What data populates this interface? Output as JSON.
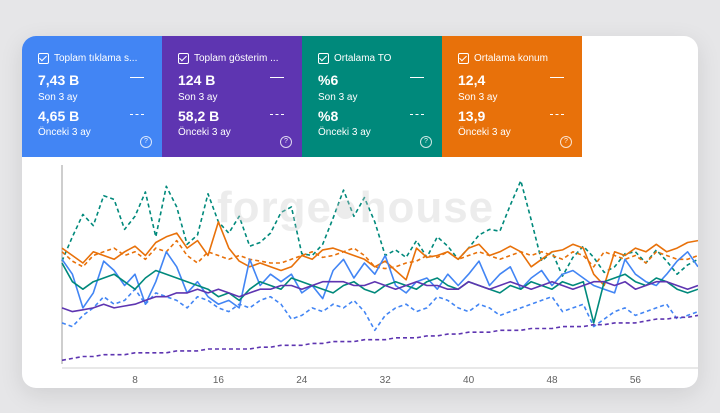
{
  "cards": [
    {
      "title": "Toplam tıklama s...",
      "current_value": "7,43 B",
      "current_label": "Son 3 ay",
      "previous_value": "4,65 B",
      "previous_label": "Önceki 3 ay",
      "color": "#4285f4"
    },
    {
      "title": "Toplam gösterim ...",
      "current_value": "124 B",
      "current_label": "Son 3 ay",
      "previous_value": "58,2 B",
      "previous_label": "Önceki 3 ay",
      "color": "#5e35b1"
    },
    {
      "title": "Ortalama TO",
      "current_value": "%6",
      "current_label": "Son 3 ay",
      "previous_value": "%8",
      "previous_label": "Önceki 3 ay",
      "color": "#00897b"
    },
    {
      "title": "Ortalama konum",
      "current_value": "12,4",
      "current_label": "Son 3 ay",
      "previous_value": "13,9",
      "previous_label": "Önceki 3 ay",
      "color": "#e8710a"
    }
  ],
  "help_icon": "help-circle-icon",
  "watermark": "forge●house",
  "chart_data": {
    "type": "line",
    "x_ticks": [
      "8",
      "16",
      "24",
      "32",
      "40",
      "48",
      "56"
    ],
    "xlim": [
      1,
      62
    ],
    "ylim": [
      0,
      100
    ],
    "grid": false,
    "series": [
      {
        "color": "#00897b",
        "style": "dashed",
        "values": [
          55,
          68,
          80,
          74,
          90,
          88,
          72,
          79,
          92,
          68,
          95,
          84,
          64,
          69,
          91,
          76,
          70,
          79,
          63,
          65,
          70,
          81,
          84,
          59,
          58,
          64,
          78,
          93,
          79,
          89,
          76,
          58,
          61,
          57,
          66,
          57,
          68,
          63,
          56,
          62,
          69,
          72,
          71,
          85,
          98,
          77,
          55,
          60,
          47,
          57,
          63,
          57,
          49,
          52,
          59,
          60,
          54,
          61,
          55,
          48,
          53,
          56
        ]
      },
      {
        "color": "#e8710a",
        "style": "solid",
        "values": [
          62,
          58,
          54,
          60,
          58,
          56,
          60,
          63,
          58,
          65,
          68,
          70,
          62,
          66,
          58,
          76,
          62,
          55,
          52,
          54,
          52,
          50,
          52,
          58,
          56,
          61,
          62,
          60,
          58,
          56,
          52,
          55,
          50,
          45,
          62,
          57,
          58,
          60,
          56,
          62,
          64,
          58,
          60,
          63,
          60,
          52,
          56,
          60,
          61,
          64,
          62,
          48,
          42,
          60,
          58,
          62,
          60,
          64,
          60,
          62,
          65,
          66
        ]
      },
      {
        "color": "#e8710a",
        "style": "dashed",
        "values": [
          60,
          55,
          52,
          58,
          60,
          62,
          58,
          60,
          56,
          62,
          60,
          66,
          58,
          54,
          60,
          58,
          56,
          58,
          56,
          55,
          54,
          54,
          56,
          58,
          60,
          57,
          58,
          60,
          62,
          58,
          52,
          51,
          52,
          54,
          55,
          58,
          57,
          60,
          56,
          58,
          60,
          58,
          56,
          58,
          60,
          58,
          60,
          58,
          56,
          60,
          58,
          52,
          60,
          58,
          56,
          58,
          54,
          60,
          58,
          56,
          56,
          58
        ]
      },
      {
        "color": "#4285f4",
        "style": "solid",
        "values": [
          56,
          48,
          30,
          38,
          55,
          50,
          42,
          48,
          32,
          44,
          60,
          52,
          38,
          44,
          36,
          32,
          34,
          30,
          56,
          42,
          48,
          44,
          48,
          38,
          42,
          35,
          50,
          56,
          46,
          54,
          48,
          58,
          42,
          38,
          44,
          46,
          40,
          48,
          42,
          48,
          55,
          42,
          48,
          52,
          40,
          46,
          50,
          42,
          48,
          50,
          46,
          42,
          40,
          38,
          56,
          48,
          44,
          42,
          48,
          55,
          60,
          52
        ]
      },
      {
        "color": "#4285f4",
        "style": "dashed",
        "values": [
          22,
          20,
          26,
          30,
          36,
          32,
          34,
          40,
          32,
          38,
          36,
          34,
          30,
          36,
          34,
          30,
          28,
          32,
          30,
          34,
          36,
          32,
          24,
          26,
          30,
          28,
          32,
          30,
          34,
          28,
          18,
          26,
          30,
          32,
          28,
          30,
          36,
          34,
          30,
          28,
          32,
          30,
          26,
          28,
          30,
          32,
          34,
          36,
          28,
          30,
          32,
          20,
          24,
          28,
          30,
          26,
          28,
          30,
          32,
          24,
          26,
          28
        ]
      },
      {
        "color": "#00897b",
        "style": "solid",
        "values": [
          54,
          44,
          40,
          44,
          46,
          48,
          44,
          40,
          46,
          50,
          48,
          46,
          44,
          42,
          40,
          36,
          38,
          34,
          40,
          44,
          42,
          40,
          46,
          44,
          42,
          40,
          38,
          42,
          44,
          40,
          38,
          42,
          44,
          42,
          40,
          44,
          46,
          42,
          40,
          44,
          42,
          40,
          38,
          42,
          40,
          44,
          42,
          40,
          44,
          42,
          44,
          22,
          44,
          46,
          48,
          44,
          42,
          46,
          44,
          40,
          38,
          40
        ]
      },
      {
        "color": "#5e35b1",
        "style": "solid",
        "values": [
          30,
          28,
          29,
          30,
          32,
          30,
          31,
          32,
          34,
          36,
          36,
          38,
          38,
          40,
          38,
          40,
          38,
          36,
          38,
          40,
          40,
          42,
          42,
          40,
          42,
          44,
          44,
          44,
          42,
          42,
          44,
          42,
          40,
          42,
          44,
          42,
          42,
          40,
          40,
          44,
          42,
          40,
          42,
          44,
          42,
          40,
          42,
          44,
          42,
          40,
          42,
          44,
          44,
          42,
          44,
          40,
          42,
          44,
          44,
          42,
          40,
          42
        ]
      },
      {
        "color": "#5e35b1",
        "style": "dashed",
        "values": [
          2,
          3,
          4,
          4,
          5,
          5,
          5,
          6,
          6,
          6,
          6,
          7,
          7,
          7,
          8,
          8,
          8,
          8,
          8,
          9,
          9,
          10,
          10,
          10,
          11,
          11,
          12,
          12,
          12,
          13,
          13,
          13,
          14,
          14,
          14,
          15,
          15,
          16,
          16,
          17,
          17,
          17,
          18,
          18,
          18,
          19,
          19,
          19,
          20,
          20,
          20,
          21,
          21,
          22,
          22,
          22,
          23,
          24,
          24,
          25,
          25,
          26
        ]
      }
    ]
  }
}
